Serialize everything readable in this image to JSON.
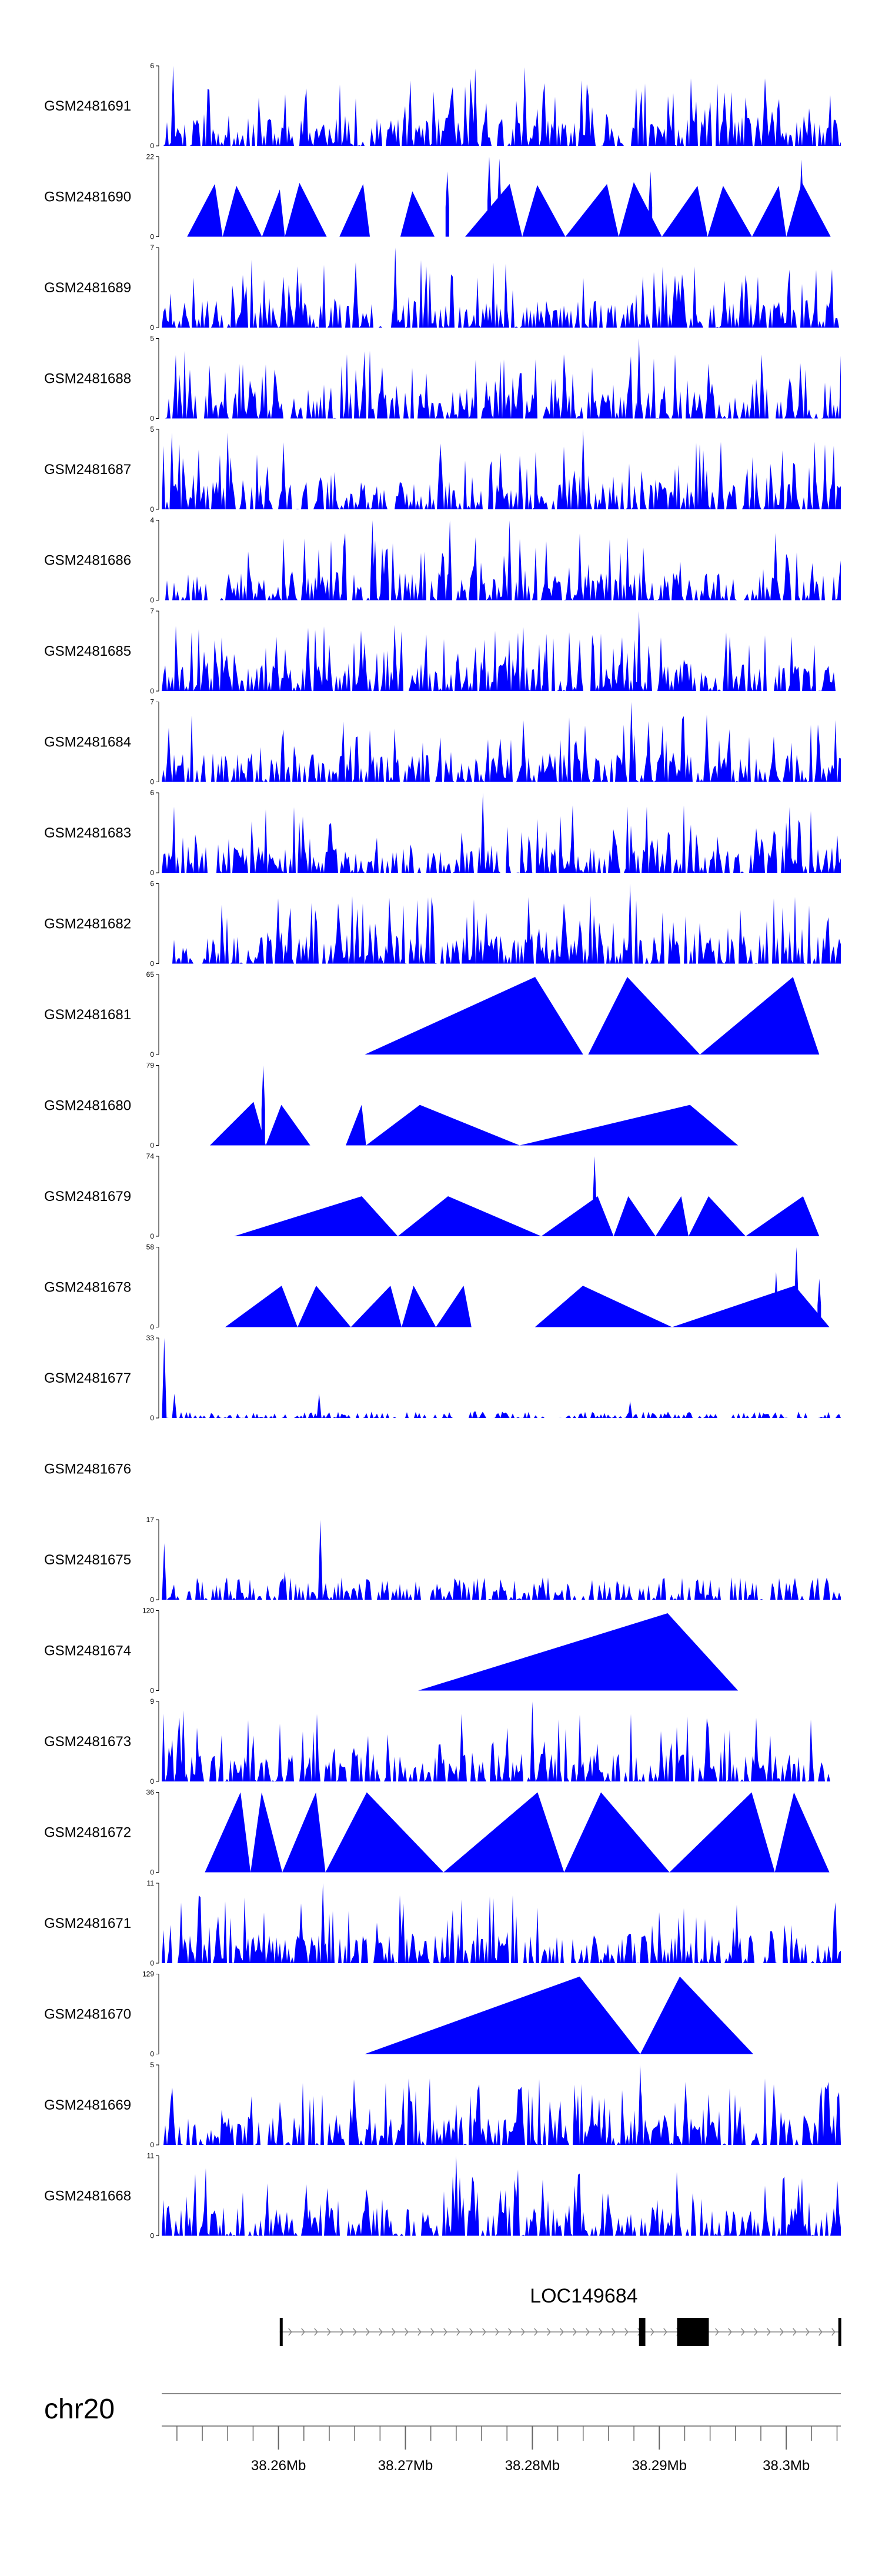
{
  "chart_data": {
    "type": "area",
    "title": "",
    "xlabel": "",
    "ylabel": "",
    "chromosome": "chr20",
    "xlim": [
      38.2508,
      38.3043
    ],
    "axis_unit": "Mb",
    "axis_ticks": [
      38.26,
      38.27,
      38.28,
      38.29,
      38.3
    ],
    "axis_tick_labels": [
      "38.26Mb",
      "38.27Mb",
      "38.28Mb",
      "38.29Mb",
      "38.3Mb"
    ],
    "gene": {
      "name": "LOC149684",
      "start": 38.2601,
      "end": 38.3043,
      "strand": "+",
      "exons": [
        [
          38.2601,
          38.2603
        ],
        [
          38.2884,
          38.2889
        ],
        [
          38.2914,
          38.2939
        ],
        [
          38.3041,
          38.3043
        ]
      ]
    },
    "tracks": [
      {
        "name": "GSM2481691",
        "ymax": 6,
        "ymin": 0,
        "style": "dense",
        "seed": 11,
        "peaks": [
          [
            38.2517,
            6
          ],
          [
            38.2755,
            5.8
          ],
          [
            38.2794,
            5.9
          ]
        ]
      },
      {
        "name": "GSM2481690",
        "ymax": 22,
        "ymin": 0,
        "style": "tri",
        "segments": [
          [
            38.2528,
            38.2556,
            14.5
          ],
          [
            38.2556,
            38.2587,
            14.0
          ],
          [
            38.2587,
            38.2605,
            13.0
          ],
          [
            38.2605,
            38.2638,
            14.8
          ],
          [
            38.2648,
            38.2672,
            14.5
          ],
          [
            38.2696,
            38.2723,
            12.5
          ],
          [
            38.2747,
            38.2792,
            14.5
          ],
          [
            38.2792,
            38.2826,
            14.2
          ],
          [
            38.2826,
            38.2868,
            14.5
          ],
          [
            38.2868,
            38.2902,
            15.0
          ],
          [
            38.2902,
            38.2938,
            14.0
          ],
          [
            38.2938,
            38.2973,
            14.0
          ],
          [
            38.2973,
            38.3,
            14.0
          ],
          [
            38.3,
            38.3035,
            15.0
          ]
        ],
        "peaks": [
          [
            38.2766,
            22
          ],
          [
            38.2774,
            21.5
          ],
          [
            38.3012,
            21.2
          ],
          [
            38.2893,
            18
          ],
          [
            38.2733,
            18
          ]
        ]
      },
      {
        "name": "GSM2481689",
        "ymax": 7,
        "ymin": 0,
        "style": "dense",
        "seed": 23,
        "peaks": [
          [
            38.2692,
            7
          ],
          [
            38.2887,
            4.5
          ]
        ]
      },
      {
        "name": "GSM2481688",
        "ymax": 5,
        "ymin": 0,
        "style": "dense",
        "seed": 31,
        "peaks": [
          [
            38.2884,
            5
          ]
        ]
      },
      {
        "name": "GSM2481687",
        "ymax": 5,
        "ymin": 0,
        "style": "dense",
        "seed": 41,
        "peaks": [
          [
            38.284,
            5
          ],
          [
            38.2516,
            4.8
          ],
          [
            38.256,
            4.8
          ]
        ]
      },
      {
        "name": "GSM2481686",
        "ymax": 4,
        "ymin": 0,
        "style": "dense",
        "seed": 53,
        "peaks": [
          [
            38.2674,
            4
          ],
          [
            38.2735,
            4
          ],
          [
            38.2782,
            4
          ]
        ]
      },
      {
        "name": "GSM2481685",
        "ymax": 7,
        "ymin": 0,
        "style": "dense",
        "seed": 61,
        "peaks": [
          [
            38.2884,
            7
          ],
          [
            38.2811,
            5
          ]
        ]
      },
      {
        "name": "GSM2481684",
        "ymax": 7,
        "ymin": 0,
        "style": "dense",
        "seed": 71,
        "peaks": [
          [
            38.2878,
            7
          ],
          [
            38.2872,
            5
          ]
        ]
      },
      {
        "name": "GSM2481683",
        "ymax": 6,
        "ymin": 0,
        "style": "dense",
        "seed": 83,
        "peaks": [
          [
            38.2761,
            6
          ]
        ]
      },
      {
        "name": "GSM2481682",
        "ymax": 6,
        "ymin": 0,
        "style": "dense",
        "seed": 97,
        "peaks": [
          [
            38.2877,
            6
          ]
        ]
      },
      {
        "name": "GSM2481681",
        "ymax": 65,
        "ymin": 0,
        "style": "tri",
        "segments": [
          [
            38.2668,
            38.284,
            63
          ],
          [
            38.2844,
            38.2932,
            63
          ],
          [
            38.2932,
            38.3026,
            63
          ]
        ],
        "peaks": []
      },
      {
        "name": "GSM2481680",
        "ymax": 79,
        "ymin": 0,
        "style": "tri",
        "segments": [
          [
            38.2546,
            38.259,
            43
          ],
          [
            38.259,
            38.2625,
            40
          ],
          [
            38.2653,
            38.2669,
            40
          ],
          [
            38.2669,
            38.279,
            40
          ],
          [
            38.279,
            38.2962,
            40
          ]
        ],
        "peaks": [
          [
            38.2588,
            79
          ]
        ]
      },
      {
        "name": "GSM2481679",
        "ymax": 74,
        "ymin": 0,
        "style": "tri",
        "segments": [
          [
            38.2565,
            38.2694,
            37
          ],
          [
            38.2694,
            38.2807,
            37
          ],
          [
            38.2807,
            38.2864,
            37
          ],
          [
            38.2864,
            38.2897,
            37
          ],
          [
            38.2897,
            38.2923,
            37
          ],
          [
            38.2923,
            38.2968,
            37
          ],
          [
            38.2968,
            38.3026,
            37
          ]
        ],
        "peaks": [
          [
            38.2849,
            74
          ]
        ]
      },
      {
        "name": "GSM2481678",
        "ymax": 58,
        "ymin": 0,
        "style": "tri",
        "segments": [
          [
            38.2558,
            38.2615,
            30
          ],
          [
            38.2615,
            38.2657,
            30
          ],
          [
            38.2657,
            38.2697,
            30
          ],
          [
            38.2697,
            38.2724,
            30
          ],
          [
            38.2724,
            38.2752,
            30
          ],
          [
            38.2802,
            38.291,
            30
          ],
          [
            38.291,
            38.3034,
            30
          ]
        ],
        "peaks": [
          [
            38.3008,
            58
          ],
          [
            38.2992,
            40
          ],
          [
            38.3026,
            35
          ]
        ]
      },
      {
        "name": "GSM2481677",
        "ymax": 33,
        "ymin": 0,
        "style": "sparse",
        "seed": 109,
        "peaks": [
          [
            38.251,
            33
          ],
          [
            38.2518,
            10
          ],
          [
            38.2632,
            10
          ],
          [
            38.2877,
            7
          ]
        ]
      },
      {
        "name": "GSM2481676",
        "ymax": null,
        "ymin": null,
        "style": "empty",
        "peaks": []
      },
      {
        "name": "GSM2481675",
        "ymax": 17,
        "ymin": 0,
        "style": "sparse2",
        "seed": 127,
        "peaks": [
          [
            38.2633,
            17
          ],
          [
            38.251,
            12
          ],
          [
            38.2605,
            6
          ]
        ]
      },
      {
        "name": "GSM2481674",
        "ymax": 120,
        "ymin": 0,
        "style": "tri",
        "segments": [
          [
            38.271,
            38.2962,
            116
          ]
        ],
        "peaks": []
      },
      {
        "name": "GSM2481673",
        "ymax": 9,
        "ymin": 0,
        "style": "dense",
        "seed": 139,
        "peaks": [
          [
            38.28,
            9
          ],
          [
            38.2525,
            8
          ]
        ]
      },
      {
        "name": "GSM2481672",
        "ymax": 36,
        "ymin": 0,
        "style": "tri",
        "segments": [
          [
            38.2542,
            38.2578,
            36
          ],
          [
            38.2578,
            38.2603,
            36
          ],
          [
            38.2603,
            38.2637,
            36
          ],
          [
            38.2637,
            38.273,
            36
          ],
          [
            38.273,
            38.2825,
            36
          ],
          [
            38.2825,
            38.2908,
            36
          ],
          [
            38.2908,
            38.2991,
            36
          ],
          [
            38.2991,
            38.3034,
            36
          ]
        ],
        "peaks": []
      },
      {
        "name": "GSM2481671",
        "ymax": 11,
        "ymin": 0,
        "style": "dense",
        "seed": 151,
        "peaks": [
          [
            38.2635,
            11
          ]
        ]
      },
      {
        "name": "GSM2481670",
        "ymax": 129,
        "ymin": 0,
        "style": "tri",
        "segments": [
          [
            38.2668,
            38.2885,
            125
          ],
          [
            38.2885,
            38.2974,
            125
          ]
        ],
        "peaks": []
      },
      {
        "name": "GSM2481669",
        "ymax": 5,
        "ymin": 0,
        "style": "dense",
        "seed": 163,
        "peaks": [
          [
            38.2885,
            5
          ]
        ]
      },
      {
        "name": "GSM2481668",
        "ymax": 11,
        "ymin": 0,
        "style": "dense",
        "seed": 173,
        "peaks": [
          [
            38.274,
            11
          ]
        ]
      }
    ]
  },
  "colors": {
    "signal": "#0000ff",
    "axis": "#000000",
    "gene": "#000000",
    "intron_arrow": "#888888",
    "chrom_line": "#888888",
    "ticks": "#666666"
  }
}
